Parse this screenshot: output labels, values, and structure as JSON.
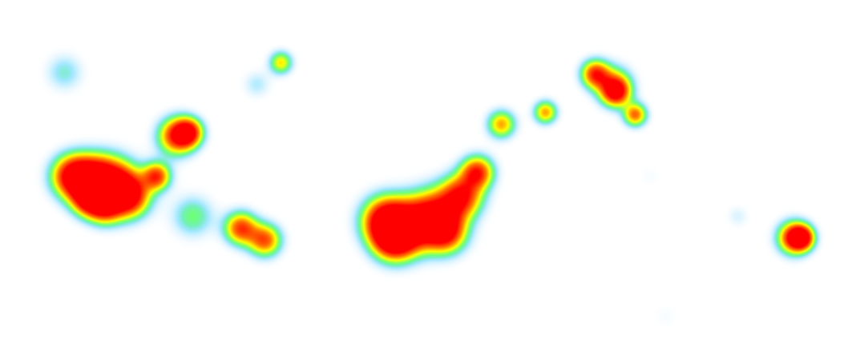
{
  "heatmap": {
    "colors": {
      "background": "#ffffff",
      "low": "#bfe9ff",
      "mid_low": "#7fdfff",
      "mid": "#6dff7a",
      "mid_high": "#ffff00",
      "high": "#ff7a00",
      "peak": "#ff0000"
    }
  }
}
